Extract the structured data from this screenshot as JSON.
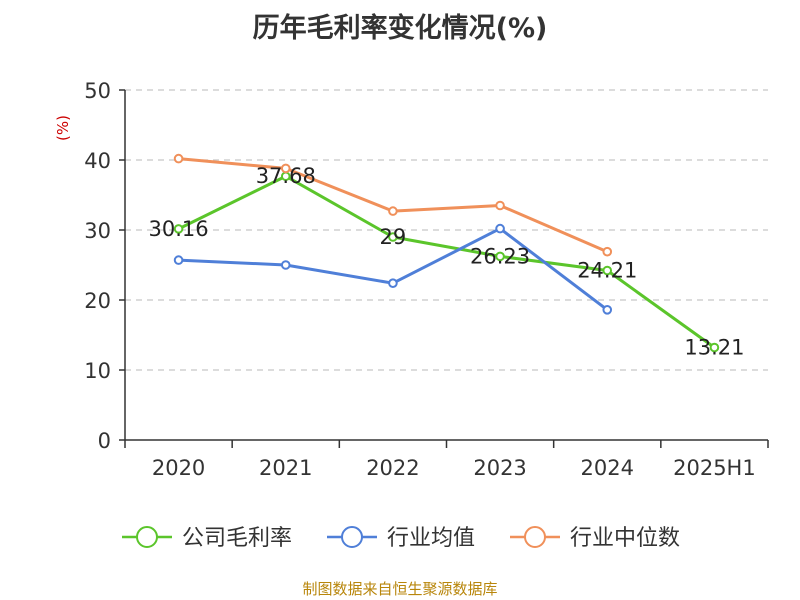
{
  "chart_data": {
    "type": "line",
    "title": "历年毛利率变化情况(%)",
    "ylabel": "(%)",
    "categories": [
      "2020",
      "2021",
      "2022",
      "2023",
      "2024",
      "2025H1"
    ],
    "yticks": [
      "0",
      "10",
      "20",
      "30",
      "40",
      "50"
    ],
    "ylim": [
      0,
      50
    ],
    "grid": true,
    "legend_position": "bottom",
    "series": [
      {
        "name": "公司毛利率",
        "color": "#5bc52b",
        "values": [
          30.16,
          37.68,
          29,
          26.23,
          24.21,
          13.21
        ],
        "labels": [
          "30.16",
          "37.68",
          "29",
          "26.23",
          "24.21",
          "13.21"
        ]
      },
      {
        "name": "行业均值",
        "color": "#4f7fd8",
        "values": [
          25.7,
          25.0,
          22.4,
          30.2,
          18.6,
          null
        ]
      },
      {
        "name": "行业中位数",
        "color": "#f0905a",
        "values": [
          40.2,
          38.8,
          32.7,
          33.5,
          26.9,
          null
        ]
      }
    ],
    "source": "制图数据来自恒生聚源数据库"
  }
}
